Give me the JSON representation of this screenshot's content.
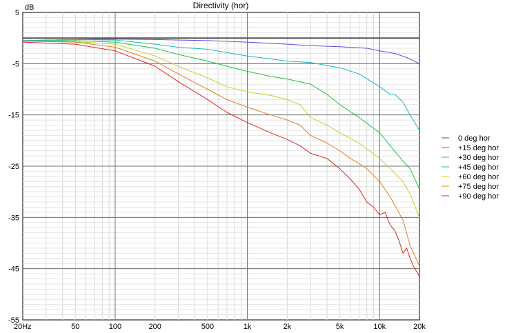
{
  "chart_data": {
    "type": "line",
    "title": "Directivity (hor)",
    "ylabel": "dB",
    "xlabel": "",
    "x_scale": "log",
    "xlim": [
      20,
      20000
    ],
    "ylim": [
      -55,
      5
    ],
    "y_ticks": [
      5,
      -5,
      -15,
      -25,
      -35,
      -45,
      -55
    ],
    "x_ticks": [
      {
        "value": 20,
        "label": "20Hz"
      },
      {
        "value": 50,
        "label": "50"
      },
      {
        "value": 100,
        "label": "100"
      },
      {
        "value": 200,
        "label": "200"
      },
      {
        "value": 500,
        "label": "500"
      },
      {
        "value": 1000,
        "label": "1k"
      },
      {
        "value": 2000,
        "label": "2k"
      },
      {
        "value": 5000,
        "label": "5k"
      },
      {
        "value": 10000,
        "label": "10k"
      },
      {
        "value": 20000,
        "label": "20k"
      }
    ],
    "grid": true,
    "legend_position": "right",
    "series": [
      {
        "name": "0 deg hor",
        "color": "#555555",
        "x": [
          20,
          20000
        ],
        "y": [
          0,
          0
        ]
      },
      {
        "name": "+15 deg hor",
        "color": "#6a48d8",
        "x": [
          20,
          50,
          100,
          200,
          500,
          1000,
          2000,
          3000,
          5000,
          8000,
          10000,
          13000,
          16000,
          20000
        ],
        "y": [
          -0.5,
          -0.3,
          -0.2,
          -0.3,
          -0.5,
          -0.8,
          -1.2,
          -1.5,
          -1.7,
          -2.0,
          -2.5,
          -3.0,
          -3.8,
          -5.0
        ]
      },
      {
        "name": "+30 deg hor",
        "color": "#18b8c8",
        "x": [
          20,
          50,
          100,
          200,
          300,
          500,
          1000,
          2000,
          3000,
          5000,
          7000,
          10000,
          12000,
          13000,
          15000,
          17000,
          20000
        ],
        "y": [
          -0.5,
          -0.3,
          -0.4,
          -1.2,
          -1.8,
          -2.2,
          -3.5,
          -4.5,
          -4.8,
          -5.8,
          -7.0,
          -9.5,
          -11.0,
          -11.0,
          -12.5,
          -15.0,
          -18.0
        ]
      },
      {
        "name": "+45 deg hor",
        "color": "#20c040",
        "x": [
          20,
          50,
          100,
          200,
          300,
          500,
          700,
          1000,
          1500,
          2000,
          3000,
          4000,
          5000,
          7000,
          10000,
          12000,
          15000,
          17000,
          20000
        ],
        "y": [
          -0.6,
          -0.5,
          -0.8,
          -2.0,
          -3.2,
          -4.5,
          -5.5,
          -6.5,
          -7.5,
          -8.0,
          -9.0,
          -11.0,
          -13.0,
          -15.5,
          -18.5,
          -21.0,
          -24.0,
          -25.5,
          -29.5
        ]
      },
      {
        "name": "+60 deg hor",
        "color": "#c8d020",
        "x": [
          20,
          50,
          100,
          200,
          300,
          500,
          700,
          1000,
          1500,
          2000,
          2500,
          3000,
          4000,
          5000,
          7000,
          10000,
          12000,
          15000,
          17000,
          20000
        ],
        "y": [
          -0.6,
          -0.7,
          -1.2,
          -3.5,
          -5.5,
          -7.8,
          -9.5,
          -10.5,
          -11.2,
          -12.0,
          -13.0,
          -15.5,
          -17.0,
          -18.5,
          -20.5,
          -23.5,
          -25.5,
          -28.0,
          -30.5,
          -35.0
        ]
      },
      {
        "name": "+75 deg hor",
        "color": "#e08028",
        "x": [
          20,
          50,
          100,
          200,
          300,
          500,
          700,
          1000,
          1500,
          2000,
          2500,
          3000,
          4000,
          5000,
          6000,
          7000,
          8000,
          10000,
          12000,
          15000,
          17000,
          20000
        ],
        "y": [
          -0.6,
          -0.8,
          -1.8,
          -4.5,
          -7.0,
          -10.0,
          -12.0,
          -13.5,
          -15.0,
          -16.0,
          -17.0,
          -19.0,
          -20.5,
          -22.0,
          -23.5,
          -24.5,
          -25.5,
          -28.0,
          -31.0,
          -35.5,
          -40.5,
          -44.5
        ]
      },
      {
        "name": "+90 deg hor",
        "color": "#e02020",
        "x": [
          20,
          50,
          100,
          200,
          300,
          500,
          700,
          1000,
          1500,
          2000,
          2500,
          3000,
          4000,
          5000,
          6000,
          7000,
          8000,
          9000,
          10000,
          11000,
          12000,
          13000,
          14000,
          15000,
          16000,
          17000,
          18000,
          20000
        ],
        "y": [
          -0.8,
          -1.2,
          -2.5,
          -5.5,
          -8.5,
          -12.0,
          -14.5,
          -16.5,
          -18.5,
          -19.8,
          -21.0,
          -22.5,
          -23.5,
          -25.5,
          -27.5,
          -29.5,
          -32.0,
          -33.0,
          -34.5,
          -34.0,
          -36.5,
          -37.5,
          -39.5,
          -42.0,
          -41.0,
          -43.0,
          -44.5,
          -46.5
        ]
      }
    ]
  }
}
